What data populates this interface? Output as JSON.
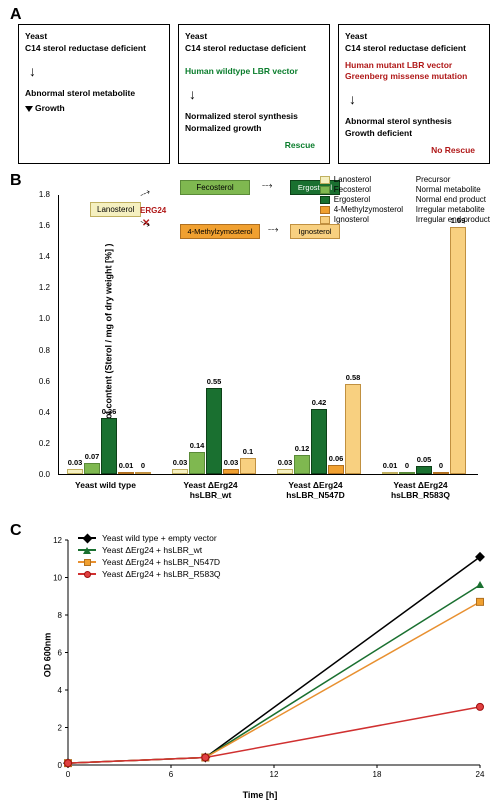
{
  "panel_labels": {
    "a": "A",
    "b": "B",
    "c": "C"
  },
  "panel_a": {
    "box1": {
      "title": "Yeast",
      "subtitle": "C14 sterol reductase deficient",
      "metabolite": "Abnormal sterol metabolite",
      "growth": "Growth"
    },
    "box2": {
      "title": "Yeast",
      "subtitle": "C14 sterol reductase deficient",
      "vector": "Human wildtype LBR vector",
      "line1": "Normalized sterol synthesis",
      "line2": "Normalized growth",
      "result": "Rescue"
    },
    "box3": {
      "title": "Yeast",
      "subtitle": "C14 sterol reductase deficient",
      "vector1": "Human mutant LBR vector",
      "vector2": "Greenberg missense mutation",
      "line1": "Abnormal sterol synthesis",
      "line2": "Growth deficient",
      "result": "No Rescue"
    }
  },
  "panel_b": {
    "pathway": {
      "lanosterol": "Lanosterol",
      "fecosterol": "Fecosterol",
      "ergosterol": "Ergosterol",
      "methylzymosterol": "4-Methylzymosterol",
      "ignosterol": "Ignosterol",
      "erg24": "ERG24"
    },
    "legend": [
      {
        "color": "#f5f0c0",
        "border": "#c0b060",
        "name": "Lanosterol",
        "desc": "Precursor"
      },
      {
        "color": "#7fb850",
        "border": "#5a8a38",
        "name": "Fecosterol",
        "desc": "Normal metabolite"
      },
      {
        "color": "#1a7030",
        "border": "#0d4018",
        "name": "Ergosterol",
        "desc": "Normal end product"
      },
      {
        "color": "#f0a030",
        "border": "#b07020",
        "name": "4-Methylzymosterol",
        "desc": "Irregular metabolite"
      },
      {
        "color": "#f8d080",
        "border": "#c09040",
        "name": "Ignosterol",
        "desc": "Irregular end product"
      }
    ],
    "y_label": "Sterol content (Sterol / mg of dry weight [%] )",
    "y_max": 1.8,
    "y_step": 0.2,
    "colors": {
      "lano": {
        "fill": "#f5f0c0",
        "border": "#c0b060"
      },
      "feco": {
        "fill": "#7fb850",
        "border": "#5a8a38"
      },
      "ergo": {
        "fill": "#1a7030",
        "border": "#0d4018"
      },
      "methyl": {
        "fill": "#f0a030",
        "border": "#b07020"
      },
      "igno": {
        "fill": "#f8d080",
        "border": "#c09040"
      }
    },
    "groups": [
      {
        "label": "Yeast wild type",
        "sublabel": "",
        "values": [
          0.03,
          0.07,
          0.36,
          0.01,
          0
        ]
      },
      {
        "label": "Yeast ΔErg24",
        "sublabel": "hsLBR_wt",
        "values": [
          0.03,
          0.14,
          0.55,
          0.03,
          0.1
        ]
      },
      {
        "label": "Yeast ΔErg24",
        "sublabel": "hsLBR_N547D",
        "values": [
          0.03,
          0.12,
          0.42,
          0.06,
          0.58
        ]
      },
      {
        "label": "Yeast ΔErg24",
        "sublabel": "hsLBR_R583Q",
        "values": [
          0.01,
          0,
          0.05,
          0,
          1.59
        ]
      }
    ]
  },
  "panel_c": {
    "legend": [
      {
        "name": "Yeast wild type + empty vector",
        "color": "#000000",
        "marker": "diamond"
      },
      {
        "name": "Yeast ΔErg24 + hsLBR_wt",
        "color": "#1a7030",
        "marker": "triangle"
      },
      {
        "name": "Yeast ΔErg24 + hsLBR_N547D",
        "color": "#e89030",
        "marker": "square"
      },
      {
        "name": "Yeast ΔErg24 + hsLBR_R583Q",
        "color": "#d03030",
        "marker": "circle"
      }
    ],
    "y_label": "OD 600nm",
    "x_label": "Time [h]",
    "y_max": 12,
    "y_step": 2,
    "x_max": 24,
    "x_step": 6,
    "series": [
      {
        "points": [
          [
            0,
            0.1
          ],
          [
            8,
            0.4
          ],
          [
            24,
            11.1
          ]
        ]
      },
      {
        "points": [
          [
            0,
            0.1
          ],
          [
            8,
            0.4
          ],
          [
            24,
            9.6
          ]
        ]
      },
      {
        "points": [
          [
            0,
            0.1
          ],
          [
            8,
            0.4
          ],
          [
            24,
            8.7
          ]
        ]
      },
      {
        "points": [
          [
            0,
            0.1
          ],
          [
            8,
            0.4
          ],
          [
            24,
            3.1
          ]
        ]
      }
    ]
  }
}
